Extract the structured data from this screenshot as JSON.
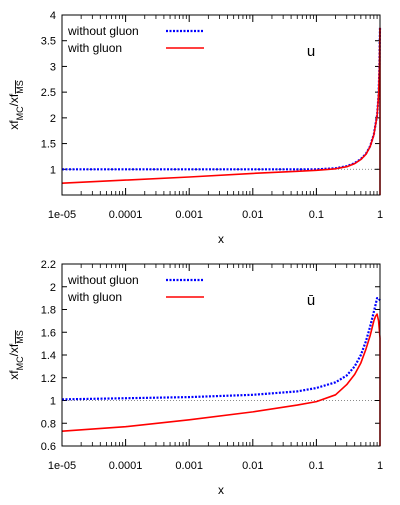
{
  "chart_data": [
    {
      "type": "line",
      "panel_label": "u",
      "xlabel": "x",
      "ylabel": "xf_MC/xf_MS",
      "xscale": "log",
      "xlim": [
        1e-05,
        1
      ],
      "ylim": [
        0.5,
        4
      ],
      "x_ticks": [
        1e-05,
        0.0001,
        0.001,
        0.01,
        0.1,
        1
      ],
      "x_tick_labels": [
        "1e-05",
        "0.0001",
        "0.001",
        "0.01",
        "0.1",
        "1"
      ],
      "y_ticks": [
        1,
        1.5,
        2,
        2.5,
        3,
        3.5,
        4
      ],
      "y_tick_labels": [
        "1",
        "1.5",
        "2",
        "2.5",
        "3",
        "3.5",
        "4"
      ],
      "reference_line": 1,
      "legend_position": "top-left",
      "series": [
        {
          "name": "without gluon",
          "color": "#0000ff",
          "style": "dotted",
          "x": [
            1e-05,
            0.0001,
            0.001,
            0.01,
            0.05,
            0.1,
            0.2,
            0.3,
            0.4,
            0.5,
            0.6,
            0.7,
            0.8,
            0.9,
            0.95,
            0.98,
            0.99,
            1.0
          ],
          "y": [
            1.0,
            1.0,
            1.0,
            1.0,
            1.0,
            1.0,
            1.02,
            1.06,
            1.12,
            1.2,
            1.3,
            1.45,
            1.68,
            2.05,
            2.45,
            3.0,
            3.45,
            3.75
          ]
        },
        {
          "name": "with gluon",
          "color": "#ff0000",
          "style": "solid",
          "x": [
            1e-05,
            0.0001,
            0.001,
            0.01,
            0.05,
            0.1,
            0.2,
            0.3,
            0.4,
            0.5,
            0.6,
            0.7,
            0.8,
            0.9,
            0.95,
            0.98,
            0.99,
            1.0
          ],
          "y": [
            0.73,
            0.79,
            0.85,
            0.92,
            0.96,
            0.98,
            1.01,
            1.05,
            1.11,
            1.19,
            1.29,
            1.44,
            1.67,
            2.04,
            2.44,
            2.99,
            3.45,
            3.75
          ]
        }
      ]
    },
    {
      "type": "line",
      "panel_label": "ū",
      "xlabel": "x",
      "ylabel": "xf_MC/xf_MS",
      "xscale": "log",
      "xlim": [
        1e-05,
        1
      ],
      "ylim": [
        0.6,
        2.2
      ],
      "x_ticks": [
        1e-05,
        0.0001,
        0.001,
        0.01,
        0.1,
        1
      ],
      "x_tick_labels": [
        "1e-05",
        "0.0001",
        "0.001",
        "0.01",
        "0.1",
        "1"
      ],
      "y_ticks": [
        0.6,
        0.8,
        1,
        1.2,
        1.4,
        1.6,
        1.8,
        2,
        2.2
      ],
      "y_tick_labels": [
        "0.6",
        "0.8",
        "1",
        "1.2",
        "1.4",
        "1.6",
        "1.8",
        "2",
        "2.2"
      ],
      "reference_line": 1,
      "legend_position": "top-left",
      "series": [
        {
          "name": "without gluon",
          "color": "#0000ff",
          "style": "dotted",
          "x": [
            1e-05,
            0.0001,
            0.001,
            0.01,
            0.05,
            0.1,
            0.2,
            0.3,
            0.4,
            0.5,
            0.6,
            0.7,
            0.8,
            0.85,
            0.9,
            0.95,
            1.0
          ],
          "y": [
            1.01,
            1.02,
            1.03,
            1.05,
            1.08,
            1.11,
            1.16,
            1.22,
            1.3,
            1.4,
            1.52,
            1.65,
            1.78,
            1.84,
            1.9,
            1.9,
            1.88
          ]
        },
        {
          "name": "with gluon",
          "color": "#ff0000",
          "style": "solid",
          "x": [
            1e-05,
            0.0001,
            0.001,
            0.01,
            0.05,
            0.1,
            0.2,
            0.3,
            0.4,
            0.5,
            0.6,
            0.7,
            0.8,
            0.85,
            0.9,
            0.95,
            1.0
          ],
          "y": [
            0.73,
            0.77,
            0.83,
            0.9,
            0.96,
            0.99,
            1.05,
            1.14,
            1.23,
            1.33,
            1.45,
            1.57,
            1.7,
            1.74,
            1.76,
            1.7,
            1.55
          ]
        }
      ]
    }
  ]
}
